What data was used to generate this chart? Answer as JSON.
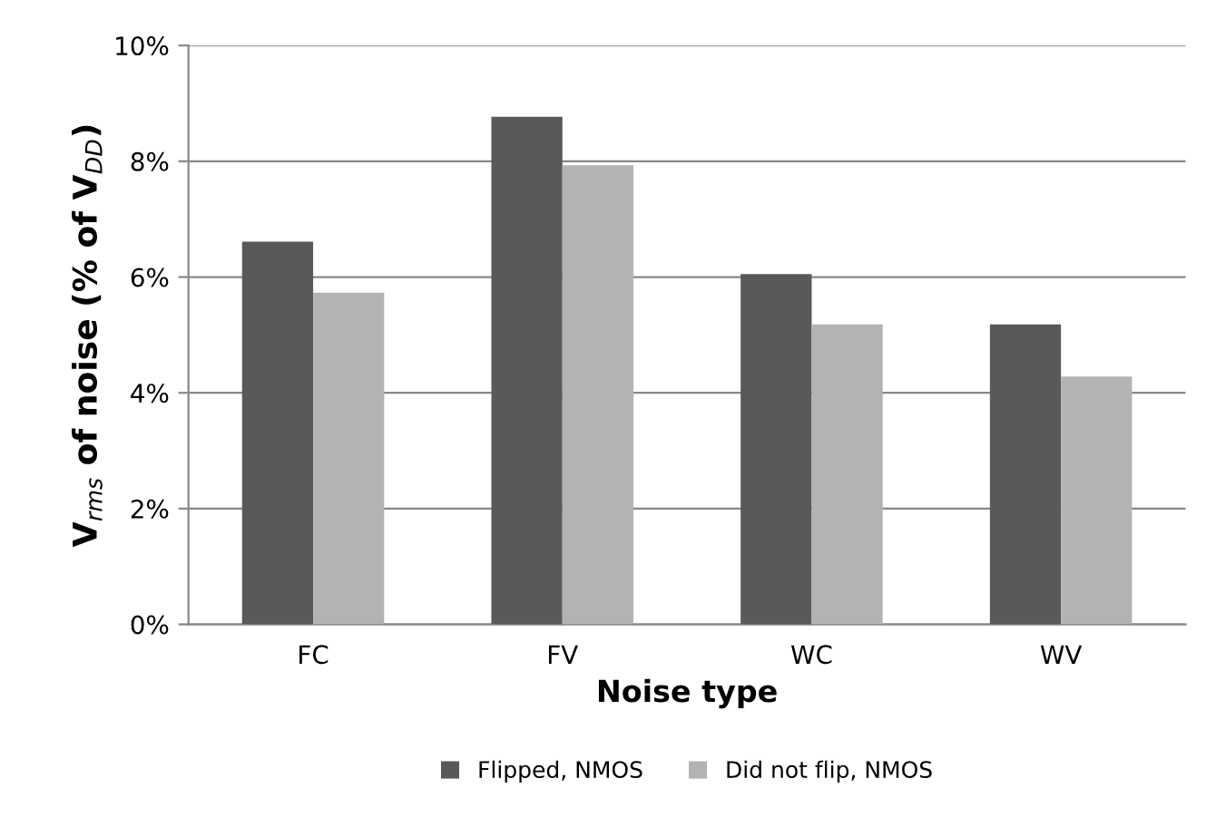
{
  "chart_data": {
    "type": "bar",
    "xlabel": "Noise type",
    "ylabel": "V$_{rms}$ of noise (% of V$_{DD}$)",
    "categories": [
      "FC",
      "FV",
      "WC",
      "WV"
    ],
    "series": [
      {
        "name": "Flipped, NMOS",
        "color": "#595959",
        "values": [
          6.61,
          8.77,
          6.05,
          5.18
        ]
      },
      {
        "name": "Did not flip, NMOS",
        "color": "#b3b3b3",
        "values": [
          5.73,
          7.93,
          5.18,
          4.28
        ]
      }
    ],
    "ylim": [
      0,
      10
    ],
    "yticks": [
      {
        "value": 0,
        "label": "0%"
      },
      {
        "value": 2,
        "label": "2%"
      },
      {
        "value": 4,
        "label": "4%"
      },
      {
        "value": 6,
        "label": "6%"
      },
      {
        "value": 8,
        "label": "8%"
      },
      {
        "value": 10,
        "label": "10%"
      }
    ],
    "grid": "y",
    "legend": "bottom"
  }
}
